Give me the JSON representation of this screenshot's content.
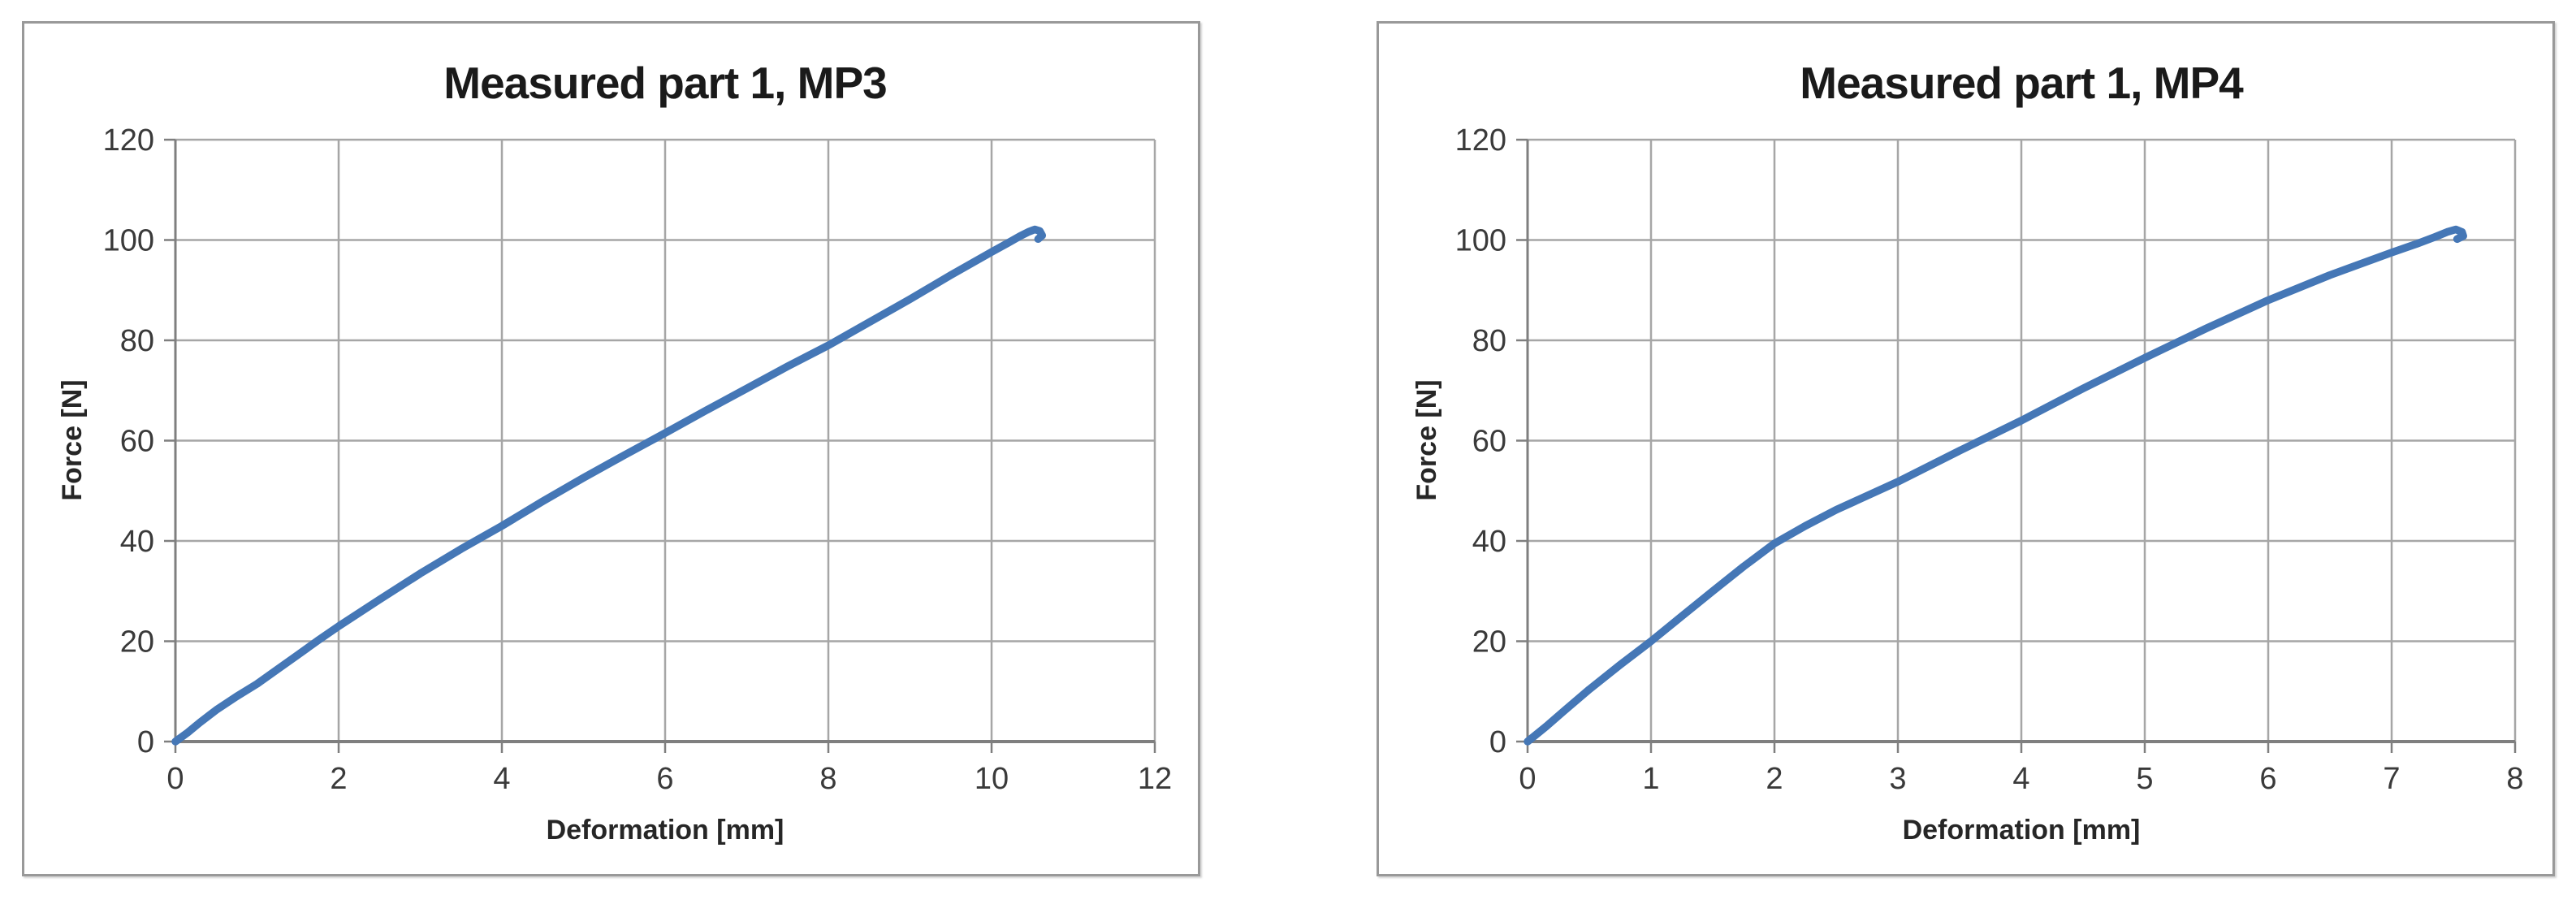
{
  "page": {
    "background_color": "#ffffff"
  },
  "colors": {
    "series_blue": "#4577B6",
    "gridline_gray": "#A6A6A6",
    "axis_gray": "#7F7F7F",
    "text_dark": "#1A1A1A"
  },
  "chart_data": [
    {
      "type": "line",
      "title": "Measured part 1, MP3",
      "xlabel": "Deformation [mm]",
      "ylabel": "Force [N]",
      "xlim": [
        0,
        12
      ],
      "xtick_step": 2,
      "ylim": [
        0,
        120
      ],
      "ytick_step": 20,
      "grid": true,
      "legend": "none",
      "series": [
        {
          "name": "Measured part 1, MP3",
          "color": "#4577B6",
          "points": [
            [
              0,
              0
            ],
            [
              0.15,
              1.8
            ],
            [
              0.3,
              3.8
            ],
            [
              0.5,
              6.3
            ],
            [
              0.75,
              9.0
            ],
            [
              1,
              11.5
            ],
            [
              1.25,
              14.4
            ],
            [
              1.5,
              17.3
            ],
            [
              1.75,
              20.2
            ],
            [
              2,
              23
            ],
            [
              2.5,
              28.3
            ],
            [
              3,
              33.5
            ],
            [
              3.5,
              38.4
            ],
            [
              4,
              43
            ],
            [
              4.5,
              47.9
            ],
            [
              5,
              52.6
            ],
            [
              5.5,
              57.1
            ],
            [
              6,
              61.5
            ],
            [
              6.5,
              66
            ],
            [
              7,
              70.4
            ],
            [
              7.5,
              74.8
            ],
            [
              8,
              79
            ],
            [
              8.5,
              83.6
            ],
            [
              9,
              88.2
            ],
            [
              9.5,
              93
            ],
            [
              10,
              97.6
            ],
            [
              10.2,
              99.4
            ],
            [
              10.35,
              100.8
            ],
            [
              10.45,
              101.6
            ],
            [
              10.53,
              102.1
            ],
            [
              10.59,
              101.8
            ],
            [
              10.62,
              100.9
            ],
            [
              10.57,
              100.2
            ]
          ]
        }
      ]
    },
    {
      "type": "line",
      "title": "Measured part 1, MP4",
      "xlabel": "Deformation [mm]",
      "ylabel": "Force [N]",
      "xlim": [
        0,
        8
      ],
      "xtick_step": 1,
      "ylim": [
        0,
        120
      ],
      "ytick_step": 20,
      "grid": true,
      "legend": "none",
      "series": [
        {
          "name": "Measured part 1, MP4",
          "color": "#4577B6",
          "points": [
            [
              0,
              0
            ],
            [
              0.15,
              3.0
            ],
            [
              0.3,
              6.2
            ],
            [
              0.5,
              10.4
            ],
            [
              0.75,
              15.3
            ],
            [
              1,
              20
            ],
            [
              1.25,
              25
            ],
            [
              1.5,
              30
            ],
            [
              1.75,
              34.9
            ],
            [
              2,
              39.5
            ],
            [
              2.25,
              43
            ],
            [
              2.5,
              46.2
            ],
            [
              3,
              51.8
            ],
            [
              3.5,
              58
            ],
            [
              4,
              64
            ],
            [
              4.5,
              70.4
            ],
            [
              5,
              76.5
            ],
            [
              5.5,
              82.4
            ],
            [
              6,
              88
            ],
            [
              6.5,
              93
            ],
            [
              7,
              97.5
            ],
            [
              7.2,
              99.2
            ],
            [
              7.35,
              100.6
            ],
            [
              7.45,
              101.6
            ],
            [
              7.52,
              102.1
            ],
            [
              7.57,
              101.6
            ],
            [
              7.58,
              100.8
            ],
            [
              7.53,
              100.2
            ]
          ]
        }
      ]
    }
  ]
}
